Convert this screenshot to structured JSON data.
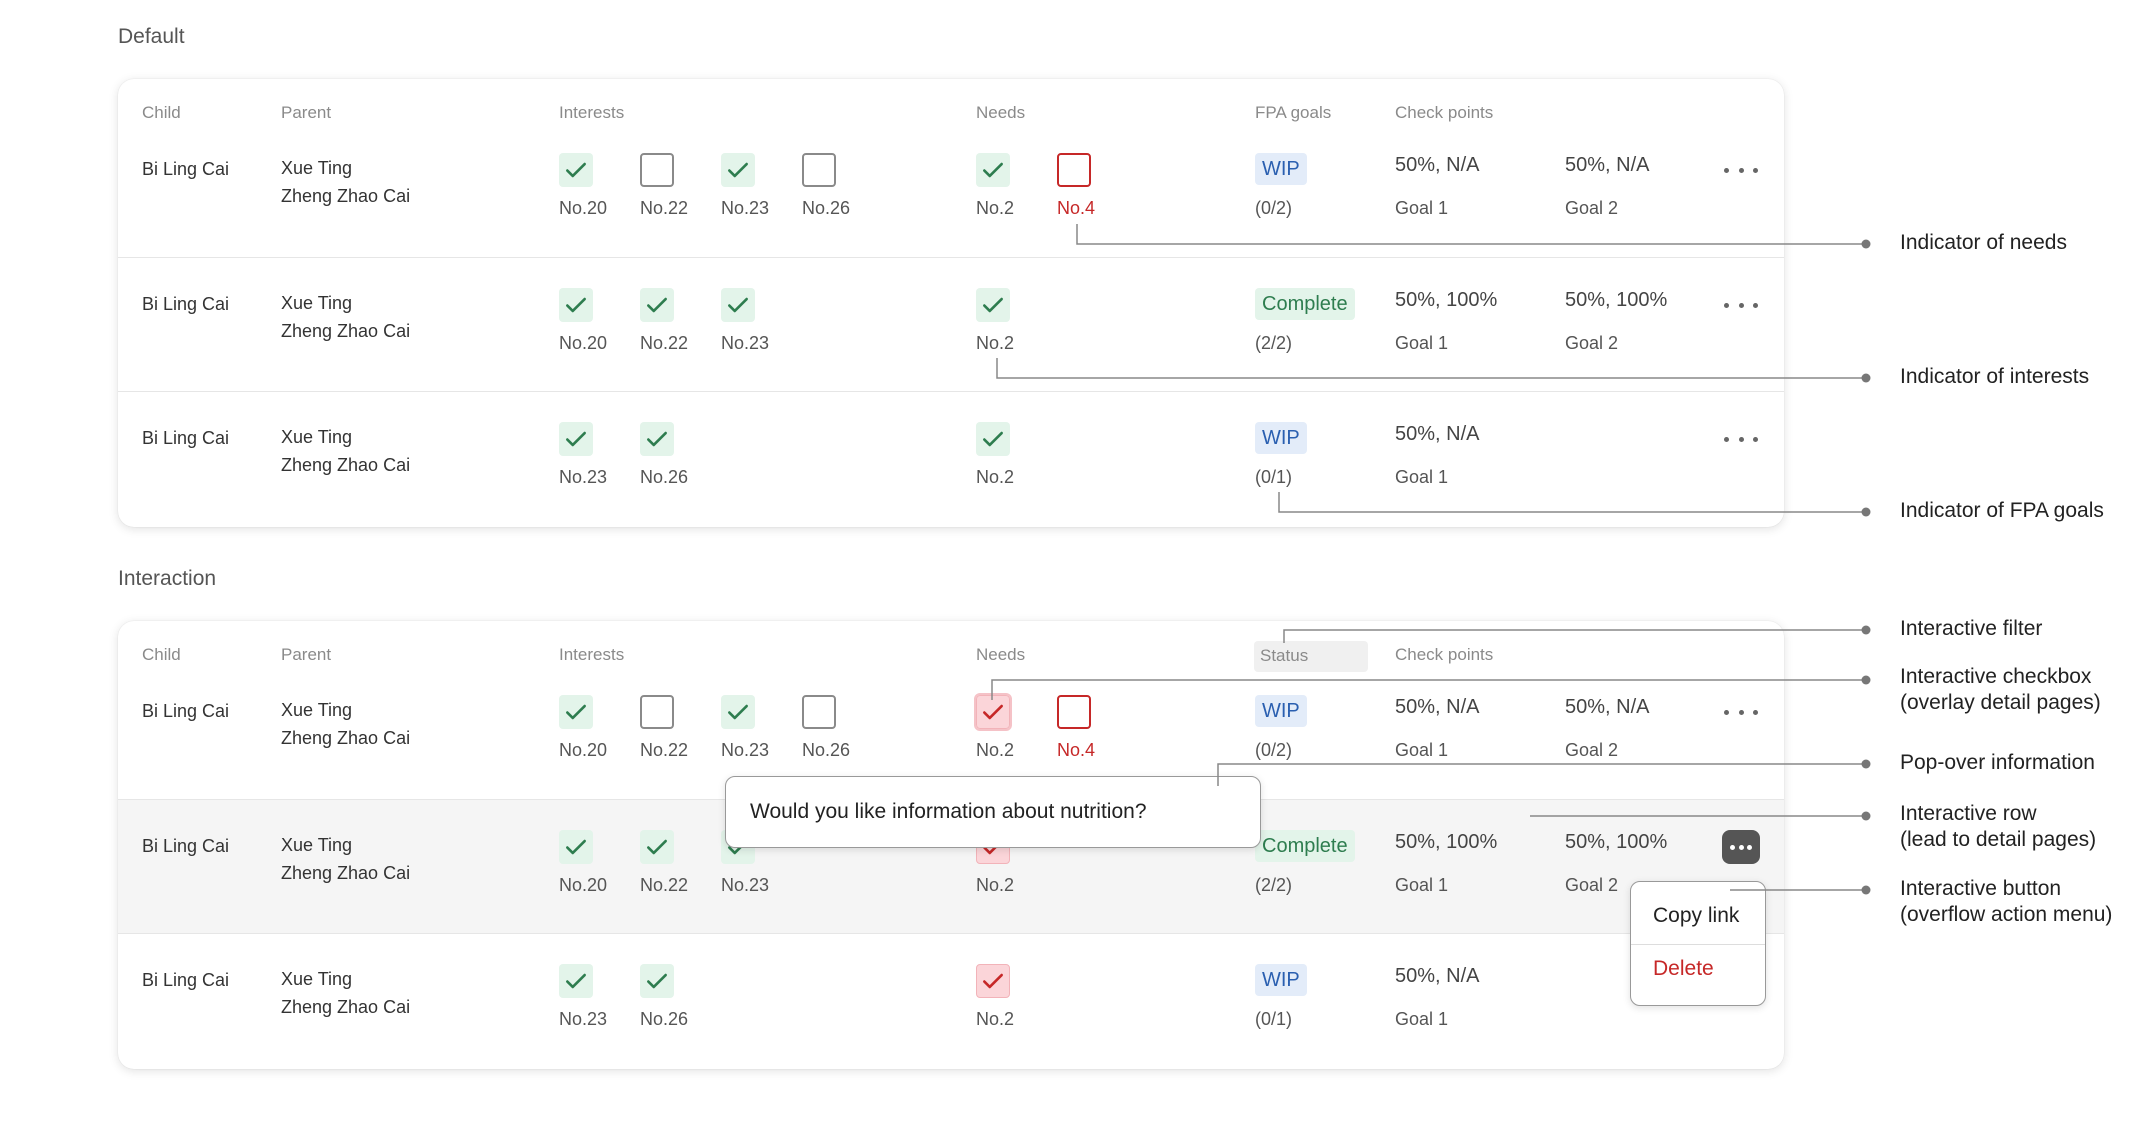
{
  "sections": {
    "default_title": "Default",
    "interaction_title": "Interaction"
  },
  "headers": {
    "child": "Child",
    "parent": "Parent",
    "interests": "Interests",
    "needs": "Needs",
    "fpa_goals": "FPA goals",
    "status": "Status",
    "check_points": "Check points"
  },
  "rows": [
    {
      "child": "Bi Ling Cai",
      "parent1": "Xue Ting",
      "parent2": "Zheng Zhao Cai",
      "interests": [
        {
          "label": "No.20",
          "checked": true
        },
        {
          "label": "No.22",
          "checked": false
        },
        {
          "label": "No.23",
          "checked": true
        },
        {
          "label": "No.26",
          "checked": false
        }
      ],
      "needs": [
        {
          "label": "No.2",
          "checked": true
        },
        {
          "label": "No.4",
          "checked": false
        }
      ],
      "status": "WIP",
      "fraction": "(0/2)",
      "checkpoints": [
        {
          "value": "50%, N/A",
          "goal": "Goal 1"
        },
        {
          "value": "50%, N/A",
          "goal": "Goal 2"
        }
      ]
    },
    {
      "child": "Bi Ling Cai",
      "parent1": "Xue Ting",
      "parent2": "Zheng Zhao Cai",
      "interests": [
        {
          "label": "No.20",
          "checked": true
        },
        {
          "label": "No.22",
          "checked": true
        },
        {
          "label": "No.23",
          "checked": true
        }
      ],
      "needs": [
        {
          "label": "No.2",
          "checked": true
        }
      ],
      "status": "Complete",
      "fraction": "(2/2)",
      "checkpoints": [
        {
          "value": "50%, 100%",
          "goal": "Goal 1"
        },
        {
          "value": "50%, 100%",
          "goal": "Goal 2"
        }
      ]
    },
    {
      "child": "Bi Ling Cai",
      "parent1": "Xue Ting",
      "parent2": "Zheng Zhao Cai",
      "interests": [
        {
          "label": "No.23",
          "checked": true
        },
        {
          "label": "No.26",
          "checked": true
        }
      ],
      "needs": [
        {
          "label": "No.2",
          "checked": true
        }
      ],
      "status": "WIP",
      "fraction": "(0/1)",
      "checkpoints": [
        {
          "value": "50%, N/A",
          "goal": "Goal 1"
        }
      ]
    }
  ],
  "popover": {
    "message": "Would you like information about nutrition?"
  },
  "menu": {
    "copy_link": "Copy link",
    "delete": "Delete"
  },
  "annotations": {
    "needs": "Indicator of needs",
    "interests": "Indicator of interests",
    "fpa_goals": "Indicator of FPA goals",
    "filter": "Interactive filter",
    "checkbox_line1": "Interactive checkbox",
    "checkbox_line2": "(overlay detail pages)",
    "popover": "Pop-over information",
    "row_line1": "Interactive row",
    "row_line2": "(lead to detail pages)",
    "button_line1": "Interactive button",
    "button_line2": "(overflow action menu)"
  },
  "colors": {
    "check_green": "#2e7d4f",
    "check_green_bg": "#e3f4ea",
    "need_red": "#c62828",
    "need_red_bg": "#fbd5d9",
    "wip_blue": "#2a5fb0",
    "wip_blue_bg": "#e3ecf9",
    "leader_line": "#888888"
  },
  "icons": {
    "checkmark": "check-icon",
    "more": "more-horizontal-icon"
  }
}
